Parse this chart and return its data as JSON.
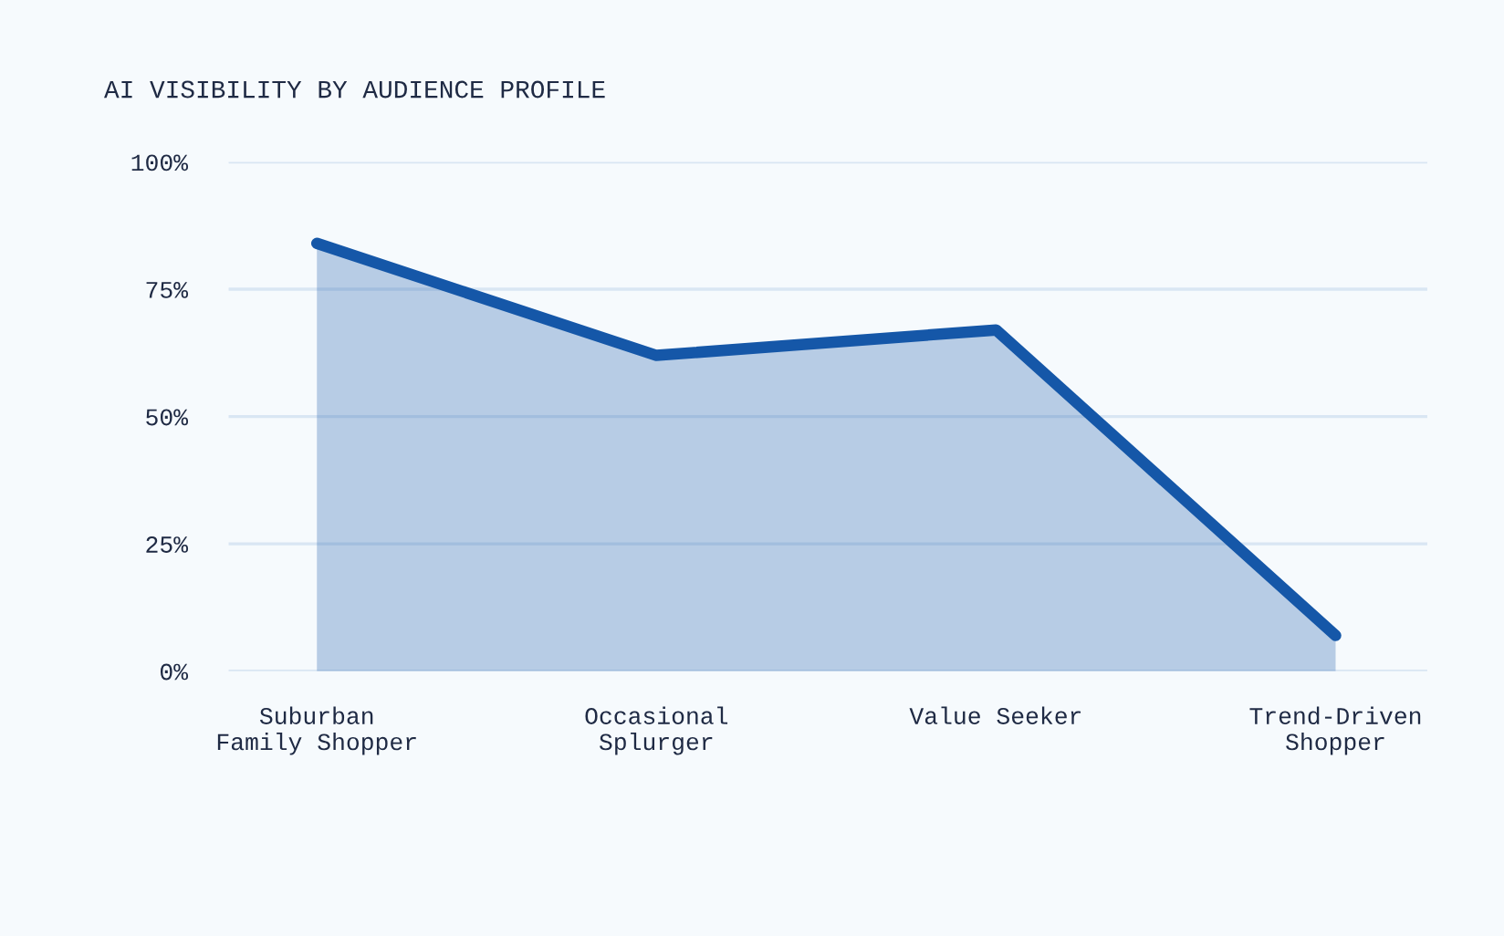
{
  "chart_data": {
    "type": "area",
    "title": "AI VISIBILITY BY AUDIENCE PROFILE",
    "categories": [
      "Suburban\nFamily Shopper",
      "Occasional\nSplurger",
      "Value Seeker",
      "Trend-Driven\nShopper"
    ],
    "series": [
      {
        "color": "#1557a8",
        "values": [
          84,
          62,
          67,
          7
        ]
      }
    ],
    "ylim": [
      0,
      100
    ],
    "yticks": [
      {
        "value": 0,
        "label": "0%"
      },
      {
        "value": 25,
        "label": "25%"
      },
      {
        "value": 50,
        "label": "50%"
      },
      {
        "value": 75,
        "label": "75%"
      },
      {
        "value": 100,
        "label": "100%"
      }
    ],
    "grid": "y",
    "line_style": "solid"
  }
}
